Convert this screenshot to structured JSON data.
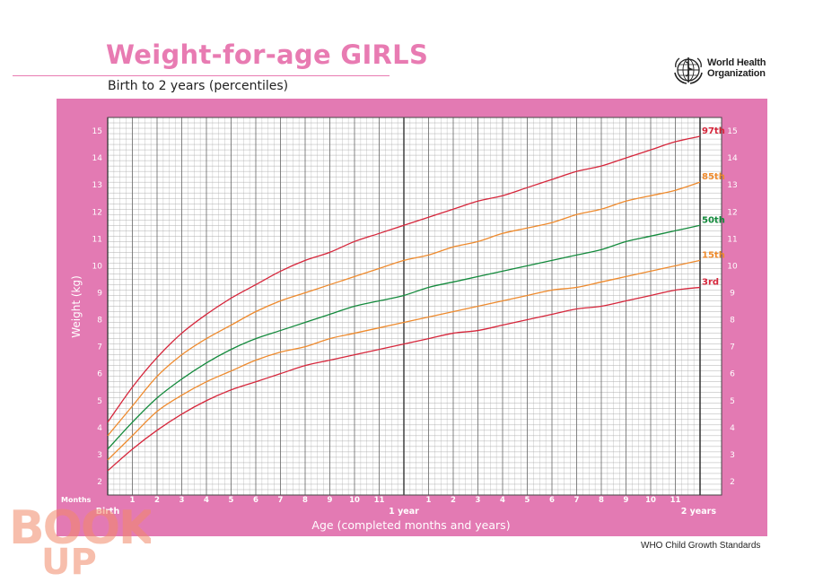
{
  "header": {
    "title": "Weight-for-age GIRLS",
    "subtitle": "Birth to 2 years (percentiles)",
    "org_line1": "World Health",
    "org_line2": "Organization"
  },
  "footer": {
    "source": "WHO Child Growth Standards"
  },
  "watermark": {
    "line1": "BOOK",
    "line2": "UP"
  },
  "colors": {
    "brand_pink": "#e37ab3",
    "title_pink": "#e87bb2",
    "p97": "#d6263b",
    "p85": "#ee8a2d",
    "p50": "#138a3c",
    "p15": "#ee8a2d",
    "p3": "#d6263b"
  },
  "chart_data": {
    "type": "line",
    "title": "Weight-for-age GIRLS",
    "subtitle": "Birth to 2 years (percentiles)",
    "xlabel": "Age (completed months and years)",
    "ylabel": "Weight (kg)",
    "x_unit_label": "Months",
    "xlim": [
      0,
      24
    ],
    "ylim": [
      1.5,
      15.5
    ],
    "x_tick_labels": [
      "Birth",
      "1",
      "2",
      "3",
      "4",
      "5",
      "6",
      "7",
      "8",
      "9",
      "10",
      "11",
      "1 year",
      "1",
      "2",
      "3",
      "4",
      "5",
      "6",
      "7",
      "8",
      "9",
      "10",
      "11",
      "2 years"
    ],
    "y_ticks": [
      2,
      3,
      4,
      5,
      6,
      7,
      8,
      9,
      10,
      11,
      12,
      13,
      14,
      15
    ],
    "grid": true,
    "x": [
      0,
      1,
      2,
      3,
      4,
      5,
      6,
      7,
      8,
      9,
      10,
      11,
      12,
      13,
      14,
      15,
      16,
      17,
      18,
      19,
      20,
      21,
      22,
      23,
      24
    ],
    "series": [
      {
        "name": "97th",
        "color": "#d6263b",
        "values": [
          4.2,
          5.5,
          6.6,
          7.5,
          8.2,
          8.8,
          9.3,
          9.8,
          10.2,
          10.5,
          10.9,
          11.2,
          11.5,
          11.8,
          12.1,
          12.4,
          12.6,
          12.9,
          13.2,
          13.5,
          13.7,
          14.0,
          14.3,
          14.6,
          14.8
        ]
      },
      {
        "name": "85th",
        "color": "#ee8a2d",
        "values": [
          3.7,
          4.8,
          5.9,
          6.7,
          7.3,
          7.8,
          8.3,
          8.7,
          9.0,
          9.3,
          9.6,
          9.9,
          10.2,
          10.4,
          10.7,
          10.9,
          11.2,
          11.4,
          11.6,
          11.9,
          12.1,
          12.4,
          12.6,
          12.8,
          13.1
        ]
      },
      {
        "name": "50th",
        "color": "#138a3c",
        "values": [
          3.2,
          4.2,
          5.1,
          5.8,
          6.4,
          6.9,
          7.3,
          7.6,
          7.9,
          8.2,
          8.5,
          8.7,
          8.9,
          9.2,
          9.4,
          9.6,
          9.8,
          10.0,
          10.2,
          10.4,
          10.6,
          10.9,
          11.1,
          11.3,
          11.5
        ]
      },
      {
        "name": "15th",
        "color": "#ee8a2d",
        "values": [
          2.8,
          3.7,
          4.6,
          5.2,
          5.7,
          6.1,
          6.5,
          6.8,
          7.0,
          7.3,
          7.5,
          7.7,
          7.9,
          8.1,
          8.3,
          8.5,
          8.7,
          8.9,
          9.1,
          9.2,
          9.4,
          9.6,
          9.8,
          10.0,
          10.2
        ]
      },
      {
        "name": "3rd",
        "color": "#d6263b",
        "values": [
          2.4,
          3.2,
          3.9,
          4.5,
          5.0,
          5.4,
          5.7,
          6.0,
          6.3,
          6.5,
          6.7,
          6.9,
          7.1,
          7.3,
          7.5,
          7.6,
          7.8,
          8.0,
          8.2,
          8.4,
          8.5,
          8.7,
          8.9,
          9.1,
          9.2
        ]
      }
    ]
  }
}
